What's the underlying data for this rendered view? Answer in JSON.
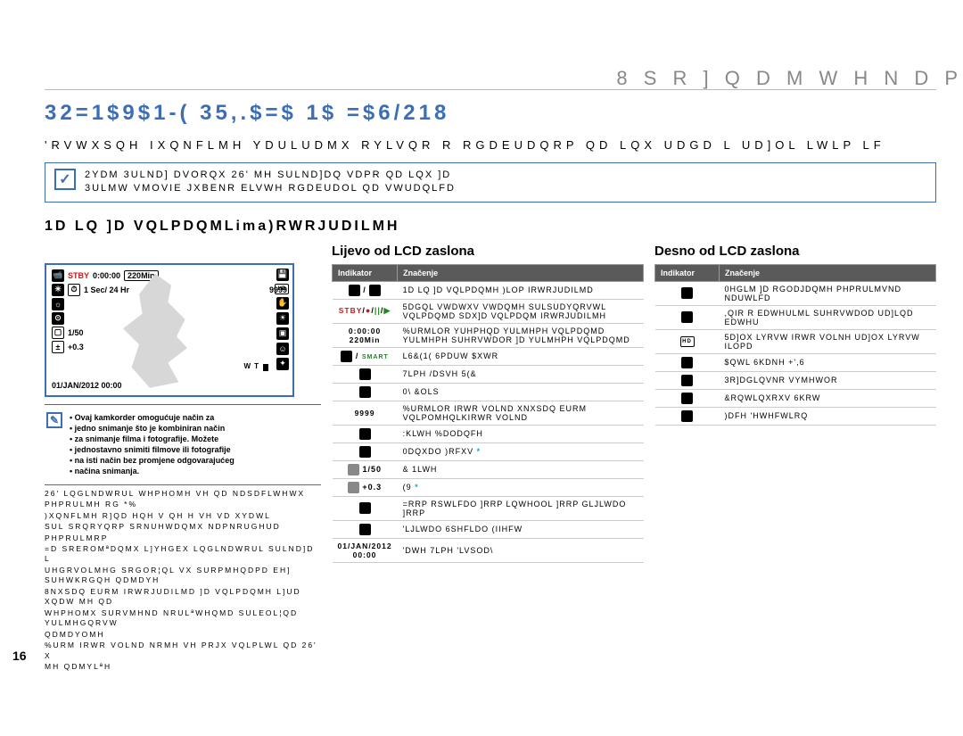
{
  "top_heading": "8 S R ] Q D M W H   N D P",
  "main_heading": "32=1$9$1-(  35,.$=$  1$  =$6/218",
  "intro": "'RVWXSQH  IXQNFLMH  YDULUDMX  RYLVQR  R  RGDEUDQRP  QD LQX  UDGD  L  UD]OL LWLP  LF",
  "blue_note_line1": "2YDM  3ULND]  DVORQX  26'  MH  SULND]DQ  VDPR  QD  LQX  ]D",
  "blue_note_line2": "3ULMW  VMOVIE  JXBENR  ELVWH  RGDEUDOL    QD  VWUDQLFD",
  "section_heading": "1D LQ  ]D  VQLPDQMLima)RWRJUDILMH",
  "col_left_head": "",
  "col_mid_head": "Lijevo od LCD zaslona",
  "col_right_head": "Desno od LCD zaslona",
  "lcd": {
    "stby": "STBY",
    "time": "0:00:00",
    "min": "220Min",
    "timelapse": "1 Sec/ 24 Hr",
    "count": "9999",
    "shots": "1/50",
    "ev": "+0.3",
    "w": "W",
    "t": "T",
    "date": "01/JAN/2012 00:00"
  },
  "note_list": [
    "Ovaj kamkorder omogućuje način za",
    "jedno snimanje što je kombiniran način",
    "za snimanje filma i fotografije. Možete",
    "jednostavno snimiti filmove ili fotografije",
    "na isti način bez promjene odgovarajućeg",
    "načina snimanja."
  ],
  "small_text": [
    "26'  LQGLNDWRUL  WHPHOMH  VH  QD  NDSDFLWHWX",
    "PHPRULMH  RG    *%",
    ")XQNFLMH  R]QD HQH  V    QH H  VH  VD XYDWL",
    "SUL  SRQRYQRP  SRNUHWDQMX  NDPNRUGHUD",
    "PHPRULMRP",
    "=D  SREROMªDQMX  L]YHGEX   LQGLNDWRUL  SULND]D  L",
    "UHGRVOLMHG  SRGOR¦QL  VX  SURPMHQDPD  EH]  SUHWKRGQH  QDMDYH",
    "8NXSDQ  EURM  IRWRJUDILMD  ]D  VQLPDQMH  L]UD XQDW  MH  QD",
    "WHPHOMX  SURVMHND  NRULªWHQMD  SULEOL¦QD  YULMHGQRVW",
    "QDMDYOMH",
    "%URM  IRWR  VOLND  NRMH  VH  PRJX  VQLPLWL  QD  26' X",
    "MH QDMYLªH"
  ],
  "left_table": {
    "headers": [
      "Indikator",
      "Značenje"
    ],
    "rows": [
      {
        "icon": "cam/photo",
        "text": "1D LQ  ]D  VQLPDQMH  )LOP  IRWRJUDILMD"
      },
      {
        "icon": "STBY/●/||/▶",
        "text": "5DGQL  VWDWXV  VWDQMH  SULSUDYQRVWL  VQLPDQMD  SDX]D  VQLPDQM  IRWRJUDILMH",
        "raw": true
      },
      {
        "icon": "0:00:00 220Min",
        "text": "%URMLOR  YUHPHQD  YULMHPH  VQLPDQMD  YULMHPH  SUHRVWDOR  ]D  YULMHPH  VQLPDQMD",
        "plain": true
      },
      {
        "icon": "smart",
        "text": "L6&(1(   6PDUW  $XWR"
      },
      {
        "icon": "timelapse",
        "text": "7LPH  /DSVH  5(&"
      },
      {
        "icon": "clip",
        "text": "0\\  &OLS"
      },
      {
        "icon": "9999",
        "text": "%URMLOR  IRWR  VOLND  XNXSDQ  EURM  VQLPOMHQLKIRWR  VOLND",
        "plain": true
      },
      {
        "icon": "wb",
        "text": ":KLWH  %DODQFH"
      },
      {
        "icon": "focus",
        "text": "0DQXDO  )RFXV  *"
      },
      {
        "icon": "1/50",
        "text": "& 1LWH",
        "plain_prefix": true
      },
      {
        "icon": "+0.3",
        "text": "(9  *",
        "plain_prefix": true
      },
      {
        "icon": "zoom",
        "text": "=RRP  RSWLFDO  ]RRP  LQWHOOL  ]RRP  GLJLWDO  ]RRP"
      },
      {
        "icon": "dse",
        "text": "'LJLWDO  6SHFLDO  (IIHFW"
      },
      {
        "icon": "01/JAN/2012 00:00",
        "text": "'DWH 7LPH  'LVSOD\\",
        "plain": true
      }
    ]
  },
  "right_table": {
    "headers": [
      "Indikator",
      "Značenje"
    ],
    "rows": [
      {
        "icon": "sd",
        "text": "0HGLM  ]D  RGODJDQMH  PHPRULMVND  NDUWLFD"
      },
      {
        "icon": "batt",
        "text": ",QIR  R  EDWHULML  SUHRVWDOD  UD]LQD  EDWHU"
      },
      {
        "icon": "HD",
        "text": "5D]OX LYRVW  IRWR  VOLNH  UD]OX LYRVW  ILOPD",
        "tiny": true
      },
      {
        "icon": "anti",
        "text": "$QWL  6KDNH  +',6"
      },
      {
        "icon": "backlight",
        "text": "3R]DGLQVNR  VYMHWOR"
      },
      {
        "icon": "cont",
        "text": "&RQWLQXRXV  6KRW"
      },
      {
        "icon": "face",
        "text": ")DFH  'HWHFWLRQ"
      }
    ]
  },
  "colors": {
    "accent": "#3a6fb7",
    "red": "#c71b1b",
    "green": "#1a8a1a",
    "cyan": "#00aee6"
  },
  "page_number": "16"
}
